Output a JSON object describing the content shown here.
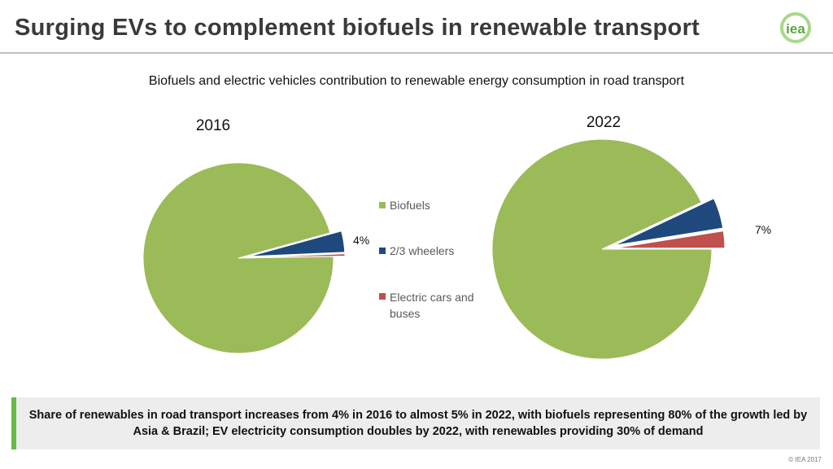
{
  "header": {
    "title": "Surging EVs to complement biofuels in renewable transport",
    "logo_text": "iea"
  },
  "chart_data": [
    {
      "type": "pie",
      "title": "2016",
      "subtitle": "Biofuels and electric vehicles contribution to renewable energy consumption in road transport",
      "categories": [
        "Biofuels",
        "2/3 wheelers",
        "Electric cars and buses"
      ],
      "values": [
        96,
        3.6,
        0.4
      ],
      "annotation": "4%"
    },
    {
      "type": "pie",
      "title": "2022",
      "categories": [
        "Biofuels",
        "2/3 wheelers",
        "Electric cars and buses"
      ],
      "values": [
        93,
        4.5,
        2.5
      ],
      "annotation": "7%"
    }
  ],
  "legend": {
    "placement": "center",
    "items": [
      {
        "label": "Biofuels",
        "color": "#9bbb59"
      },
      {
        "label": "2/3 wheelers",
        "color": "#1f497d"
      },
      {
        "label": "Electric cars and buses",
        "color": "#c0504d"
      }
    ]
  },
  "footer": {
    "text": "Share of renewables in road transport increases from 4% in 2016 to almost 5% in 2022, with biofuels representing 80% of the growth led by Asia & Brazil;  EV electricity consumption doubles by 2022, with renewables providing 30% of demand"
  },
  "copyright": "© IEA 2017"
}
